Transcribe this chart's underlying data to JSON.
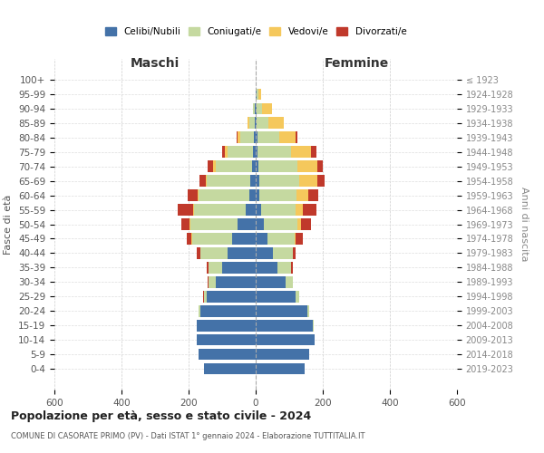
{
  "age_groups": [
    "0-4",
    "5-9",
    "10-14",
    "15-19",
    "20-24",
    "25-29",
    "30-34",
    "35-39",
    "40-44",
    "45-49",
    "50-54",
    "55-59",
    "60-64",
    "65-69",
    "70-74",
    "75-79",
    "80-84",
    "85-89",
    "90-94",
    "95-99",
    "100+"
  ],
  "birth_years": [
    "2019-2023",
    "2014-2018",
    "2009-2013",
    "2004-2008",
    "1999-2003",
    "1994-1998",
    "1989-1993",
    "1984-1988",
    "1979-1983",
    "1974-1978",
    "1969-1973",
    "1964-1968",
    "1959-1963",
    "1954-1958",
    "1949-1953",
    "1944-1948",
    "1939-1943",
    "1934-1938",
    "1929-1933",
    "1924-1928",
    "≤ 1923"
  ],
  "males": {
    "celibe": [
      155,
      170,
      175,
      175,
      165,
      145,
      120,
      100,
      85,
      70,
      55,
      30,
      20,
      15,
      10,
      8,
      5,
      3,
      2,
      0,
      0
    ],
    "coniugato": [
      0,
      0,
      1,
      2,
      5,
      10,
      20,
      40,
      80,
      120,
      140,
      155,
      150,
      130,
      110,
      75,
      40,
      15,
      5,
      0,
      0
    ],
    "vedovo": [
      0,
      0,
      0,
      0,
      0,
      0,
      0,
      0,
      0,
      1,
      1,
      2,
      3,
      5,
      8,
      8,
      8,
      5,
      2,
      0,
      0
    ],
    "divorziato": [
      0,
      0,
      0,
      0,
      1,
      2,
      3,
      5,
      10,
      15,
      25,
      45,
      30,
      18,
      15,
      10,
      3,
      2,
      0,
      0,
      0
    ]
  },
  "females": {
    "nubile": [
      145,
      160,
      175,
      170,
      155,
      120,
      90,
      65,
      50,
      35,
      25,
      15,
      12,
      10,
      8,
      5,
      5,
      3,
      3,
      2,
      0
    ],
    "coniugata": [
      0,
      0,
      1,
      2,
      5,
      10,
      20,
      40,
      60,
      80,
      100,
      105,
      110,
      120,
      115,
      100,
      65,
      35,
      15,
      5,
      0
    ],
    "vedova": [
      0,
      0,
      0,
      0,
      0,
      0,
      0,
      1,
      2,
      5,
      10,
      20,
      35,
      55,
      60,
      60,
      50,
      45,
      30,
      10,
      0
    ],
    "divorziata": [
      0,
      0,
      0,
      0,
      0,
      1,
      2,
      5,
      8,
      20,
      30,
      40,
      30,
      20,
      18,
      15,
      5,
      2,
      0,
      0,
      0
    ]
  },
  "colors": {
    "celibe": "#4472a8",
    "coniugato": "#c5d9a0",
    "vedovo": "#f5c85c",
    "divorziato": "#c0392b"
  },
  "title": "Popolazione per età, sesso e stato civile - 2024",
  "subtitle": "COMUNE DI CASORATE PRIMO (PV) - Dati ISTAT 1° gennaio 2024 - Elaborazione TUTTITALIA.IT",
  "xlabel_left": "Maschi",
  "xlabel_right": "Femmine",
  "ylabel_left": "Fasce di età",
  "ylabel_right": "Anni di nascita",
  "xlim": 600,
  "legend_labels": [
    "Celibi/Nubili",
    "Coniugati/e",
    "Vedovi/e",
    "Divorzati/e"
  ],
  "background_color": "#ffffff"
}
